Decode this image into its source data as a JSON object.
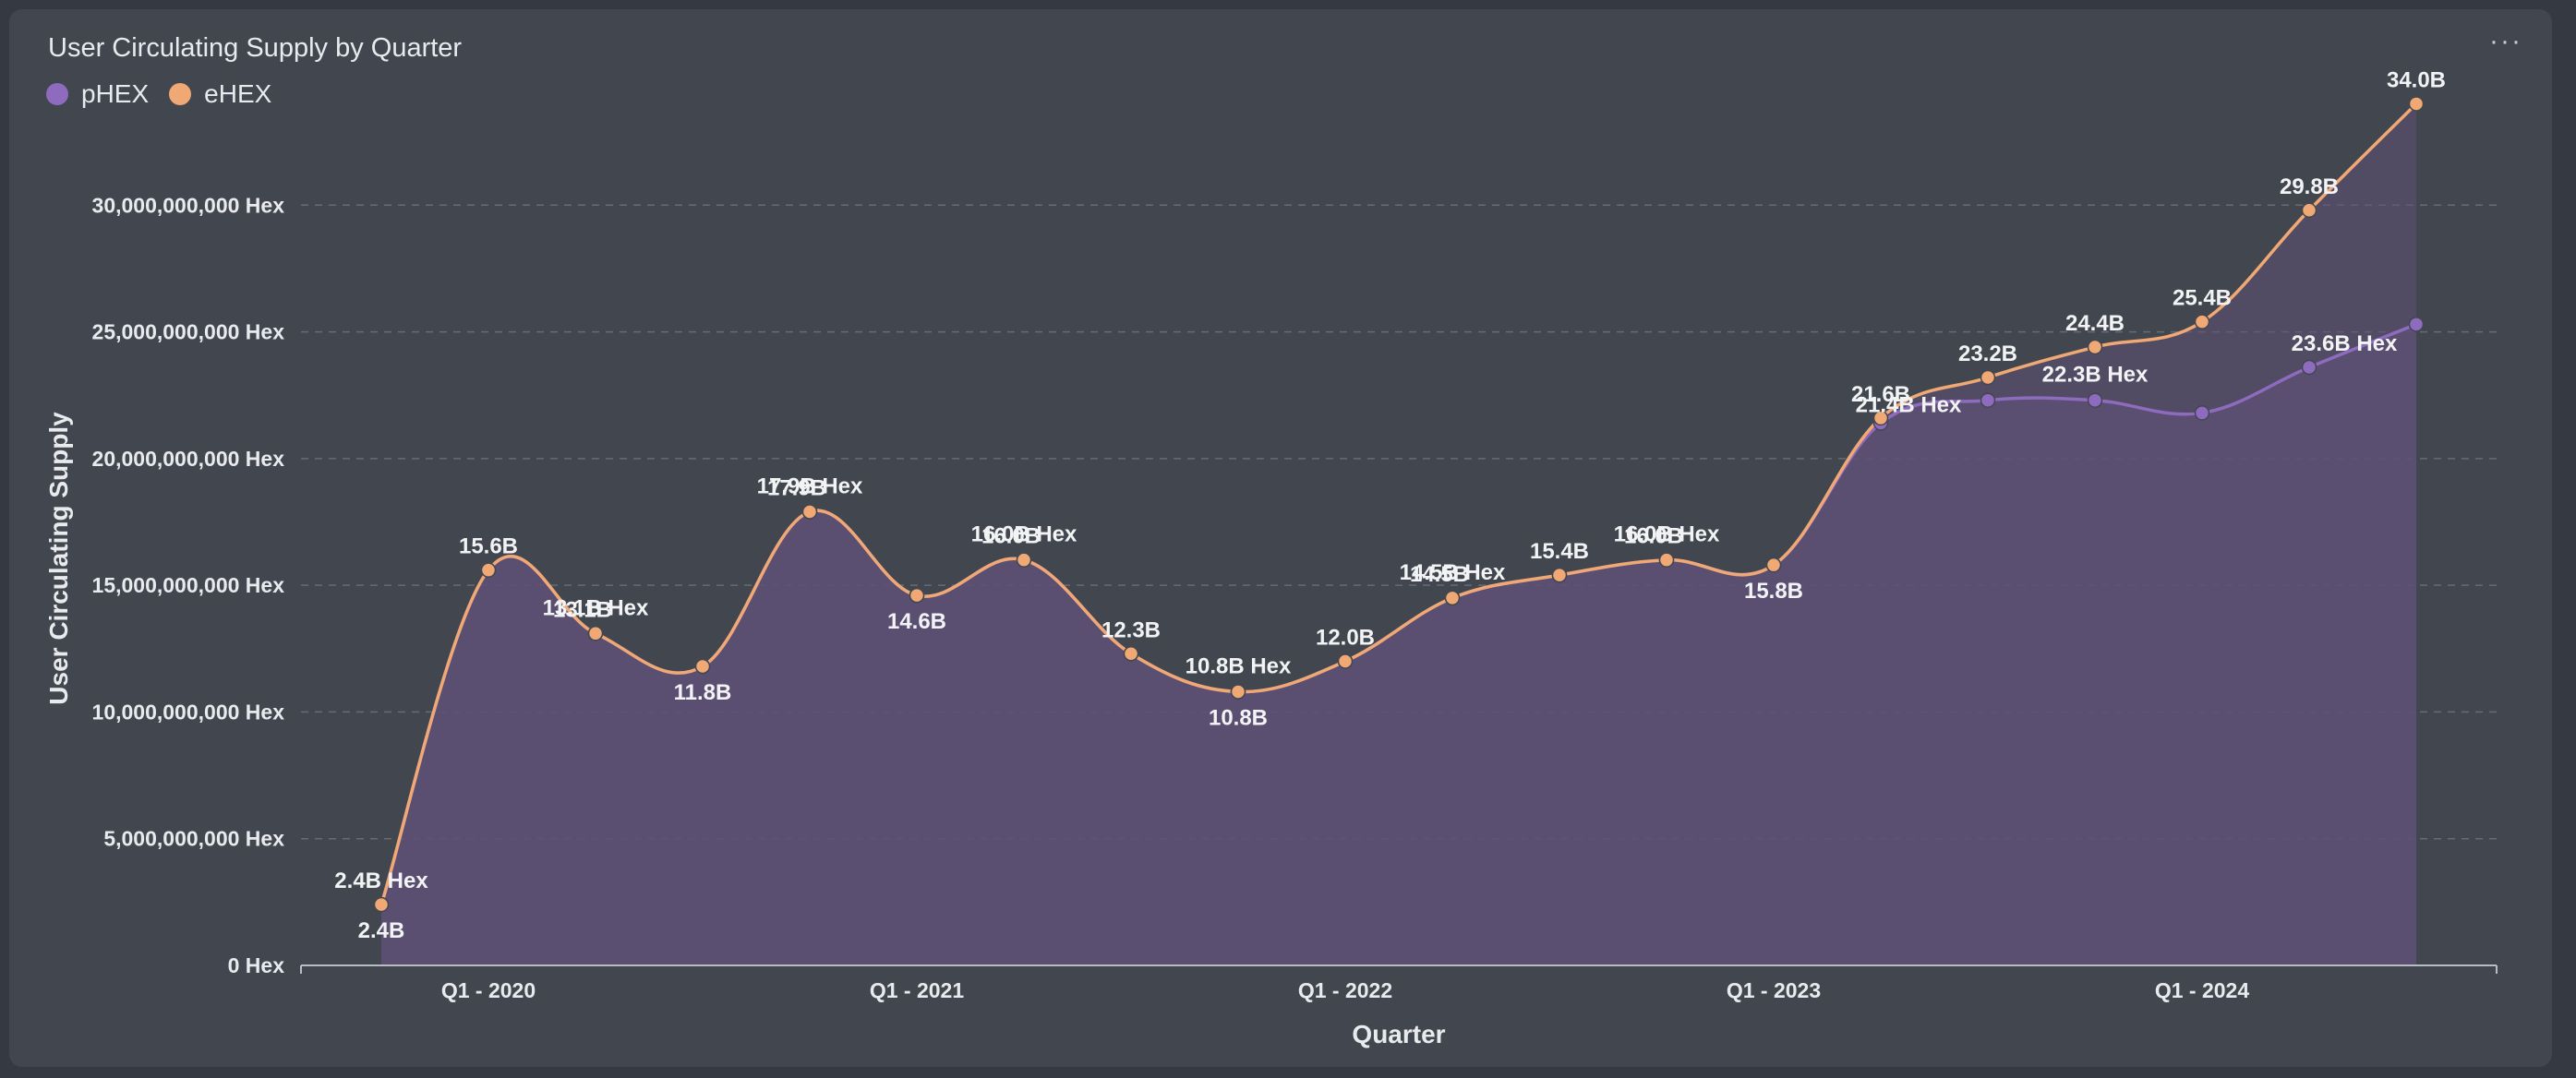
{
  "header": {
    "title": "User Circulating Supply by Quarter",
    "menu_label": "···"
  },
  "legend": [
    {
      "name": "pHEX",
      "color": "#8e6bbf"
    },
    {
      "name": "eHEX",
      "color": "#f0a875"
    }
  ],
  "chart_data": {
    "type": "area",
    "xlabel": "Quarter",
    "ylabel": "User Circulating Supply",
    "ylim": [
      0,
      35000000000
    ],
    "yticks": [
      0,
      5000000000,
      10000000000,
      15000000000,
      20000000000,
      25000000000,
      30000000000
    ],
    "ytick_labels": [
      "0 Hex",
      "5,000,000,000 Hex",
      "10,000,000,000 Hex",
      "15,000,000,000 Hex",
      "20,000,000,000 Hex",
      "25,000,000,000 Hex",
      "30,000,000,000 Hex"
    ],
    "xtick_labels": [
      {
        "label": "Q1 - 2020",
        "index": 1
      },
      {
        "label": "Q1 - 2021",
        "index": 5
      },
      {
        "label": "Q1 - 2022",
        "index": 9
      },
      {
        "label": "Q1 - 2023",
        "index": 13
      },
      {
        "label": "Q1 - 2024",
        "index": 17
      }
    ],
    "grid": true,
    "legend_position": "top-left",
    "series": [
      {
        "name": "pHEX",
        "color": "#8e6bbf",
        "values": [
          2400000000.0,
          15600000000.0,
          13100000000.0,
          11800000000.0,
          17900000000.0,
          14600000000.0,
          16000000000.0,
          12300000000.0,
          10800000000.0,
          12000000000.0,
          14500000000.0,
          15400000000.0,
          16000000000.0,
          15800000000.0,
          21400000000.0,
          22300000000.0,
          22300000000.0,
          21800000000.0,
          23600000000.0,
          25300000000.0
        ],
        "labels": [
          "2.4B Hex",
          null,
          "13.1B Hex",
          null,
          "17.9B Hex",
          null,
          "16.0B Hex",
          null,
          "10.8B Hex",
          null,
          "14.5B Hex",
          null,
          "16.0B Hex",
          null,
          "21.4B Hex",
          null,
          "22.3B Hex",
          null,
          "23.6B Hex",
          null
        ]
      },
      {
        "name": "eHEX",
        "color": "#f0a875",
        "values": [
          2400000000.0,
          15600000000.0,
          13100000000.0,
          11800000000.0,
          17900000000.0,
          14600000000.0,
          16000000000.0,
          12300000000.0,
          10800000000.0,
          12000000000.0,
          14500000000.0,
          15400000000.0,
          16000000000.0,
          15800000000.0,
          21600000000.0,
          23200000000.0,
          24400000000.0,
          25400000000.0,
          29800000000.0,
          34000000000.0
        ],
        "labels": [
          "2.4B",
          "15.6B",
          "13.1B",
          "11.8B",
          "17.9B",
          "14.6B",
          "16.0B",
          "12.3B",
          "10.8B",
          "12.0B",
          "14.5B",
          "15.4B",
          "16.0B",
          "15.8B",
          "21.6B",
          "23.2B",
          "24.4B",
          "25.4B",
          "29.8B",
          "34.0B"
        ]
      }
    ]
  }
}
